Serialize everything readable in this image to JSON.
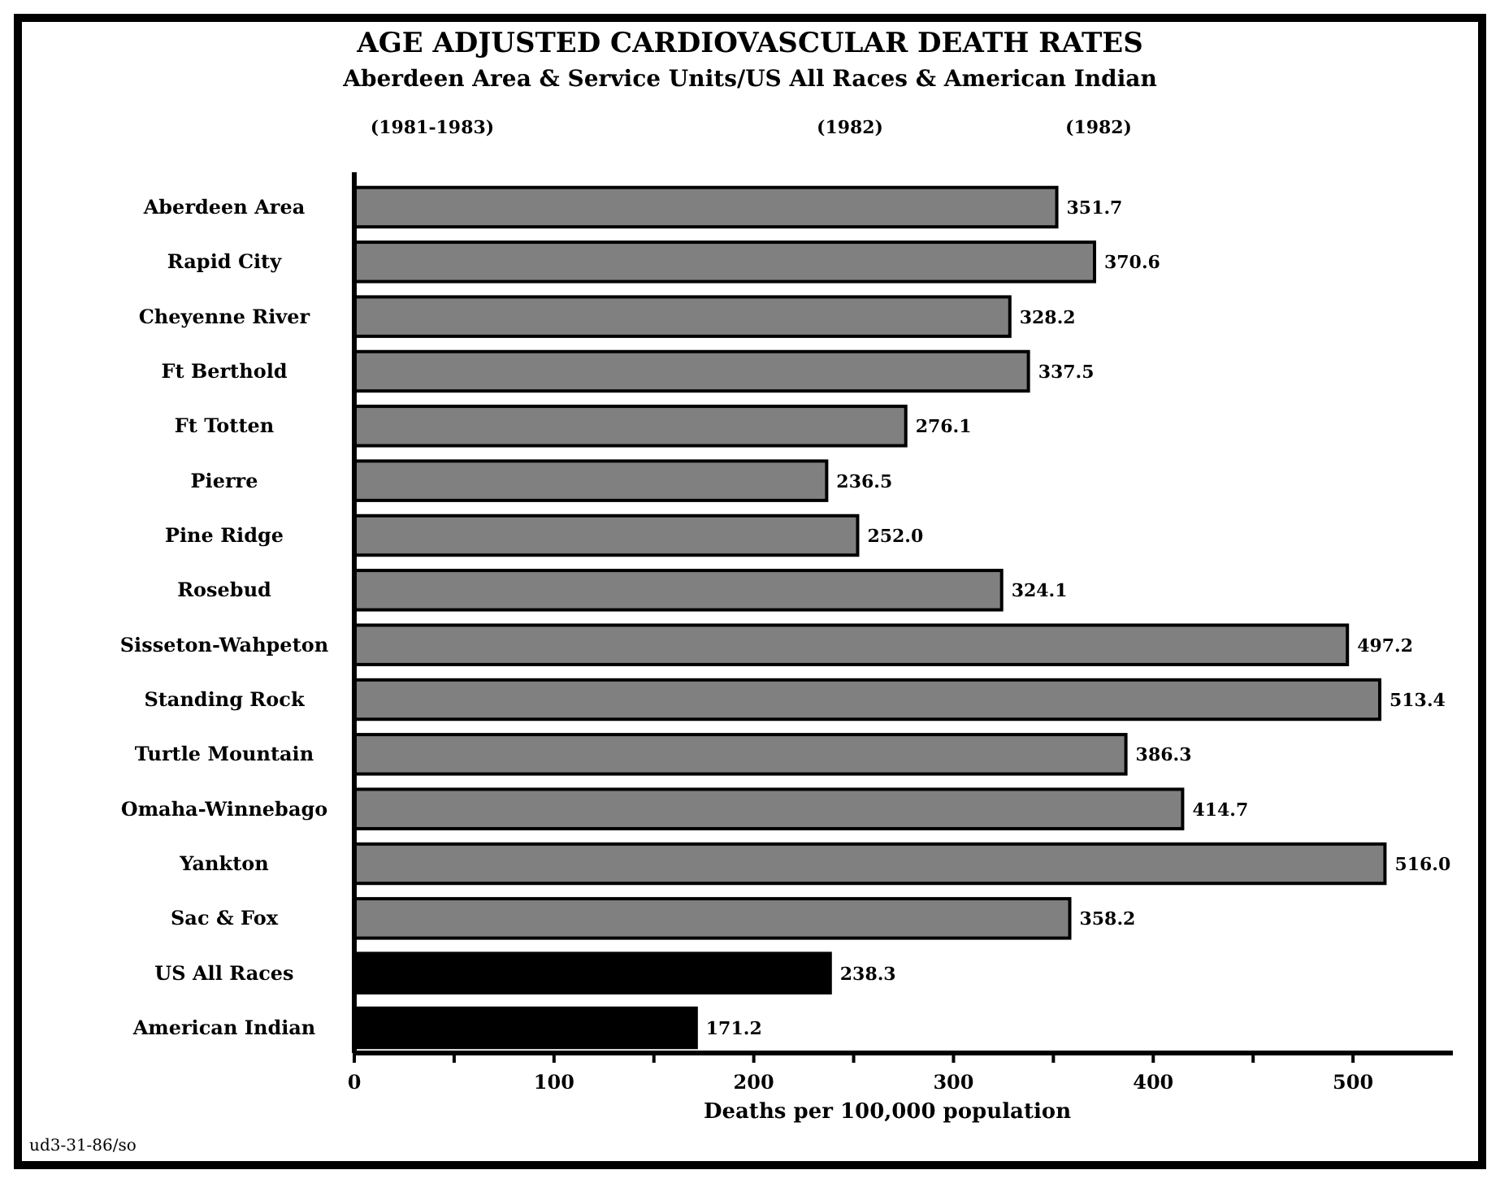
{
  "chart_data": {
    "type": "bar",
    "orientation": "horizontal",
    "title": "AGE ADJUSTED CARDIOVASCULAR DEATH RATES",
    "subtitle": "Aberdeen Area & Service Units/US All Races & American Indian",
    "xlabel": "Deaths per 100,000 population",
    "categories": [
      "Aberdeen Area",
      "Rapid City",
      "Cheyenne River",
      "Ft Berthold",
      "Ft Totten",
      "Pierre",
      "Pine Ridge",
      "Rosebud",
      "Sisseton-Wahpeton",
      "Standing Rock",
      "Turtle Mountain",
      "Omaha-Winnebago",
      "Yankton",
      "Sac & Fox",
      "US All Races",
      "American Indian"
    ],
    "values": [
      351.7,
      370.6,
      328.2,
      337.5,
      276.1,
      236.5,
      252.0,
      324.1,
      497.2,
      513.4,
      386.3,
      414.7,
      516.0,
      358.2,
      238.3,
      171.2
    ],
    "colors": [
      "#808080",
      "#808080",
      "#808080",
      "#808080",
      "#808080",
      "#808080",
      "#808080",
      "#808080",
      "#808080",
      "#808080",
      "#808080",
      "#808080",
      "#808080",
      "#808080",
      "#000000",
      "#000000"
    ],
    "value_labels": [
      "351.7",
      "370.6",
      "328.2",
      "337.5",
      "276.1",
      "236.5",
      "252.0",
      "324.1",
      "497.2",
      "513.4",
      "386.3",
      "414.7",
      "516.0",
      "358.2",
      "238.3",
      "171.2"
    ],
    "xlim": [
      0,
      550
    ],
    "xticks": [
      0,
      {
        "value": 50,
        "label": null
      },
      100,
      {
        "value": 150,
        "label": null
      },
      200,
      {
        "value": 250,
        "label": null
      },
      300,
      {
        "value": 350,
        "label": null
      },
      400,
      {
        "value": 450,
        "label": null
      },
      500
    ],
    "grid": false,
    "annotations": [
      "(1981-1983)",
      "(1982)",
      "(1982)",
      "ud3-31-86/so"
    ]
  }
}
